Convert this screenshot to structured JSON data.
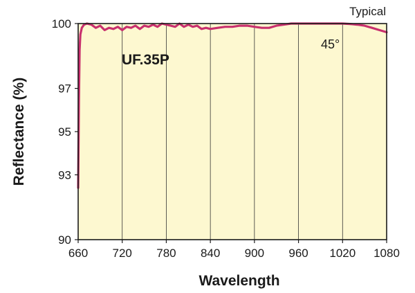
{
  "chart_data": {
    "type": "line",
    "title": "UF.35P",
    "corner_note": "Typical",
    "annotation": "45°",
    "xlabel": "Wavelength",
    "ylabel": "Reflectance (%)",
    "xlim": [
      660,
      1080
    ],
    "ylim": [
      90,
      100
    ],
    "x_ticks": [
      660,
      720,
      780,
      840,
      900,
      960,
      1020,
      1080
    ],
    "y_ticks": [
      90,
      93,
      95,
      97,
      100
    ],
    "grid": "vertical lines only",
    "background_color": "#fdf8d0",
    "series_color": "#c8306e",
    "series": [
      {
        "name": "",
        "x": [
          660,
          661,
          662,
          663,
          665,
          668,
          672,
          678,
          684,
          690,
          696,
          702,
          708,
          714,
          720,
          726,
          732,
          738,
          744,
          750,
          756,
          762,
          768,
          774,
          780,
          786,
          792,
          798,
          804,
          810,
          816,
          822,
          828,
          834,
          840,
          850,
          860,
          870,
          880,
          890,
          900,
          910,
          920,
          930,
          940,
          950,
          960,
          970,
          980,
          990,
          1000,
          1010,
          1020,
          1030,
          1040,
          1050,
          1060,
          1070,
          1080
        ],
        "y": [
          92.4,
          96.5,
          98.8,
          99.5,
          99.8,
          99.95,
          100.0,
          99.95,
          99.8,
          99.9,
          99.7,
          99.8,
          99.75,
          99.85,
          99.7,
          99.85,
          99.8,
          99.9,
          99.75,
          99.9,
          99.85,
          99.95,
          99.85,
          100.0,
          99.95,
          99.9,
          99.85,
          100.0,
          99.85,
          99.95,
          99.85,
          99.9,
          99.75,
          99.8,
          99.75,
          99.8,
          99.85,
          99.85,
          99.9,
          99.9,
          99.85,
          99.8,
          99.8,
          99.9,
          99.95,
          100.0,
          100.0,
          100.0,
          100.0,
          100.0,
          100.0,
          100.0,
          100.0,
          99.98,
          99.95,
          99.9,
          99.8,
          99.7,
          99.6
        ]
      }
    ]
  }
}
